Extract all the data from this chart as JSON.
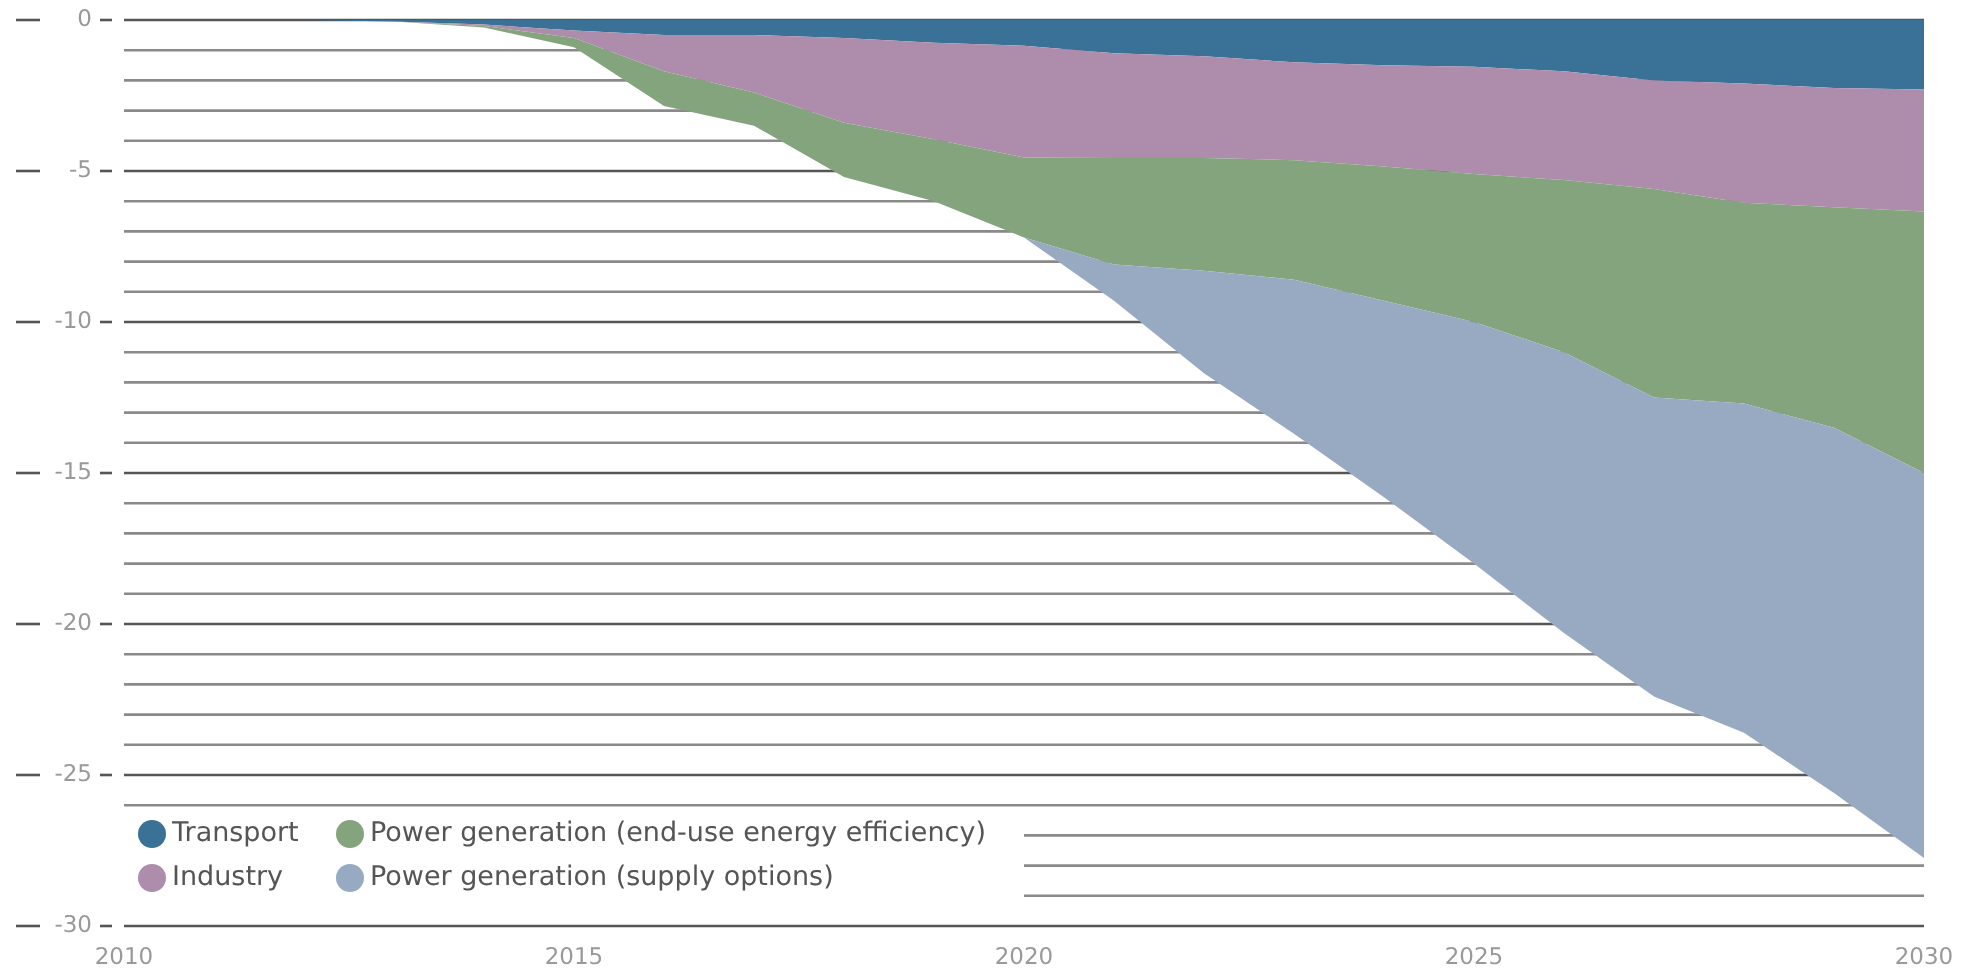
{
  "chart_data": {
    "type": "area",
    "stacked": true,
    "x": [
      2010,
      2011,
      2012,
      2013,
      2014,
      2015,
      2016,
      2017,
      2018,
      2019,
      2020,
      2021,
      2022,
      2023,
      2024,
      2025,
      2026,
      2027,
      2028,
      2029,
      2030
    ],
    "series": [
      {
        "name": "Transport",
        "color": "#3a7196",
        "values": [
          0,
          0,
          0,
          -0.05,
          -0.15,
          -0.35,
          -0.5,
          -0.5,
          -0.6,
          -0.75,
          -0.85,
          -1.1,
          -1.2,
          -1.4,
          -1.5,
          -1.55,
          -1.7,
          -2.0,
          -2.1,
          -2.25,
          -2.3
        ]
      },
      {
        "name": "Industry",
        "color": "#ad8dab",
        "values": [
          0,
          0,
          0,
          0,
          -0.05,
          -0.25,
          -1.2,
          -1.9,
          -2.8,
          -3.2,
          -3.7,
          -3.47,
          -3.37,
          -3.24,
          -3.35,
          -3.55,
          -3.6,
          -3.6,
          -3.95,
          -3.95,
          -4.04
        ]
      },
      {
        "name": "Power generation (end-use energy efficiency)",
        "color": "#84a47e",
        "values": [
          0,
          0,
          0,
          0,
          -0.05,
          -0.3,
          -1.15,
          -1.1,
          -1.8,
          -2.05,
          -2.65,
          -3.53,
          -3.73,
          -3.96,
          -4.45,
          -4.9,
          -5.7,
          -6.9,
          -6.65,
          -7.3,
          -8.66
        ]
      },
      {
        "name": "Power generation (supply options)",
        "color": "#98a9c2",
        "values": [
          0,
          0,
          0,
          0,
          0,
          0,
          0,
          0,
          0,
          0,
          0,
          -1.2,
          -3.4,
          -5.1,
          -6.5,
          -8.0,
          -9.3,
          -9.9,
          -10.9,
          -12.1,
          -12.75
        ]
      }
    ],
    "xlim": [
      2010,
      2030
    ],
    "xticks": [
      2010,
      2015,
      2020,
      2025,
      2030
    ],
    "ylim": [
      -30,
      0
    ],
    "yticks": [
      0,
      {
        "value": -1,
        "label": null
      },
      {
        "value": -2,
        "label": null
      },
      {
        "value": -3,
        "label": null
      },
      {
        "value": -4,
        "label": null
      },
      -5,
      {
        "value": -6,
        "label": null
      },
      {
        "value": -7,
        "label": null
      },
      {
        "value": -8,
        "label": null
      },
      {
        "value": -9,
        "label": null
      },
      -10,
      {
        "value": -11,
        "label": null
      },
      {
        "value": -12,
        "label": null
      },
      {
        "value": -13,
        "label": null
      },
      {
        "value": -14,
        "label": null
      },
      -15,
      {
        "value": -16,
        "label": null
      },
      {
        "value": -17,
        "label": null
      },
      {
        "value": -18,
        "label": null
      },
      {
        "value": -19,
        "label": null
      },
      -20,
      {
        "value": -21,
        "label": null
      },
      {
        "value": -22,
        "label": null
      },
      {
        "value": -23,
        "label": null
      },
      {
        "value": -24,
        "label": null
      },
      -25,
      {
        "value": -26,
        "label": null
      },
      {
        "value": -27,
        "label": null
      },
      {
        "value": -28,
        "label": null
      },
      {
        "value": -29,
        "label": null
      },
      -30
    ],
    "grid": "y",
    "legend": "bottom left"
  }
}
